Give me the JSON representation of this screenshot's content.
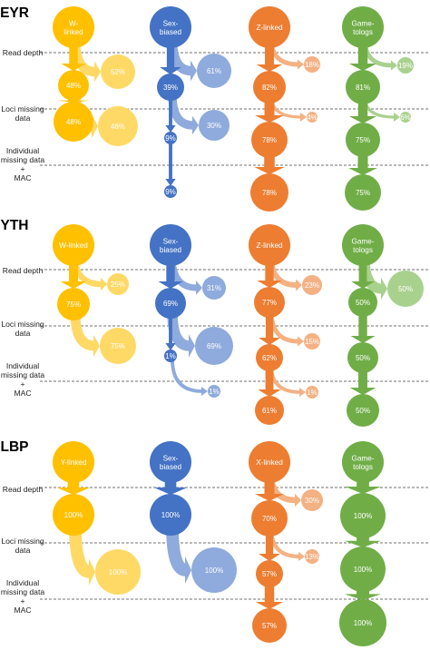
{
  "colors": {
    "W": "#FFC000",
    "W_light": "#FFD966",
    "S": "#4472C4",
    "S_light": "#8FAADC",
    "Z": "#ED7D31",
    "Z_light": "#F4B183",
    "G": "#70AD47",
    "G_light": "#A9D18E"
  },
  "stage_labels": {
    "read_depth": [
      "Read depth"
    ],
    "loci": [
      "Loci missing",
      "data"
    ],
    "individual": [
      "Individual",
      "missing data",
      "+",
      "MAC"
    ]
  },
  "panels": [
    {
      "label": "EYR",
      "groups": [
        {
          "color": "W",
          "title": [
            "W-",
            "linked"
          ],
          "retained": [
            "48%",
            "48%",
            ""
          ],
          "removed": [
            "52%",
            "48%",
            ""
          ]
        },
        {
          "color": "S",
          "title": [
            "Sex-",
            "biased"
          ],
          "retained": [
            "39%",
            "9%",
            "9%"
          ],
          "removed": [
            "61%",
            "30%",
            ""
          ]
        },
        {
          "color": "Z",
          "title": [
            "Z-linked"
          ],
          "retained": [
            "82%",
            "78%",
            "78%"
          ],
          "removed": [
            "18%",
            "4%",
            ""
          ]
        },
        {
          "color": "G",
          "title": [
            "Game-",
            "tologs"
          ],
          "retained": [
            "81%",
            "75%",
            "75%"
          ],
          "removed": [
            "19%",
            "6%",
            ""
          ]
        }
      ]
    },
    {
      "label": "YTH",
      "groups": [
        {
          "color": "W",
          "title": [
            "W-linked"
          ],
          "retained": [
            "75%",
            "",
            ""
          ],
          "removed": [
            "25%",
            "75%",
            ""
          ]
        },
        {
          "color": "S",
          "title": [
            "Sex-",
            "biased"
          ],
          "retained": [
            "69%",
            "1%",
            ""
          ],
          "removed": [
            "31%",
            "69%",
            "1%"
          ]
        },
        {
          "color": "Z",
          "title": [
            "Z-linked"
          ],
          "retained": [
            "77%",
            "62%",
            "61%"
          ],
          "removed": [
            "23%",
            "15%",
            "1%"
          ]
        },
        {
          "color": "G",
          "title": [
            "Game-",
            "tologs"
          ],
          "retained": [
            "50%",
            "50%",
            "50%"
          ],
          "removed": [
            "50%",
            "",
            ""
          ]
        }
      ]
    },
    {
      "label": "LBP",
      "groups": [
        {
          "color": "W",
          "title": [
            "Y-linked"
          ],
          "retained": [
            "100%",
            "",
            ""
          ],
          "removed": [
            "",
            "100%",
            ""
          ]
        },
        {
          "color": "S",
          "title": [
            "Sex-",
            "biased"
          ],
          "retained": [
            "100%",
            "",
            ""
          ],
          "removed": [
            "",
            "100%",
            ""
          ]
        },
        {
          "color": "Z",
          "title": [
            "X-linked"
          ],
          "retained": [
            "70%",
            "57%",
            "57%"
          ],
          "removed": [
            "30%",
            "13%",
            ""
          ]
        },
        {
          "color": "G",
          "title": [
            "Game-",
            "tologs"
          ],
          "retained": [
            "100%",
            "100%",
            "100%"
          ],
          "removed": [
            "",
            "",
            ""
          ]
        }
      ]
    }
  ]
}
